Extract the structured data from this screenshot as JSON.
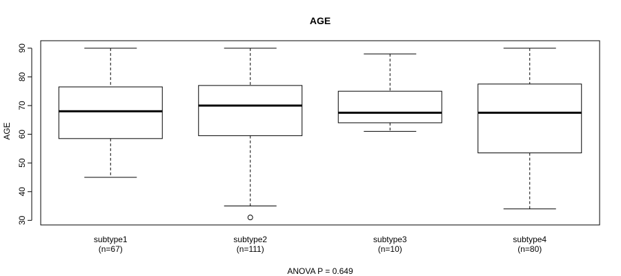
{
  "chart_data": {
    "type": "box",
    "title": "AGE",
    "ylabel": "AGE",
    "xlabel": "ANOVA P = 0.649",
    "ylim": [
      28.4,
      92.6
    ],
    "yticks": [
      30,
      40,
      50,
      60,
      70,
      80,
      90
    ],
    "grid": false,
    "categories": [
      {
        "name": "subtype1",
        "n_label": "(n=67)",
        "whisker_low": 45,
        "q1": 58.5,
        "median": 68,
        "q3": 76.5,
        "whisker_high": 90,
        "outliers": []
      },
      {
        "name": "subtype2",
        "n_label": "(n=111)",
        "whisker_low": 35,
        "q1": 59.5,
        "median": 70,
        "q3": 77,
        "whisker_high": 90,
        "outliers": [
          31
        ]
      },
      {
        "name": "subtype3",
        "n_label": "(n=10)",
        "whisker_low": 61,
        "q1": 64,
        "median": 67.5,
        "q3": 75,
        "whisker_high": 88,
        "outliers": []
      },
      {
        "name": "subtype4",
        "n_label": "(n=80)",
        "whisker_low": 34,
        "q1": 53.5,
        "median": 67.5,
        "q3": 77.5,
        "whisker_high": 90,
        "outliers": []
      }
    ]
  }
}
